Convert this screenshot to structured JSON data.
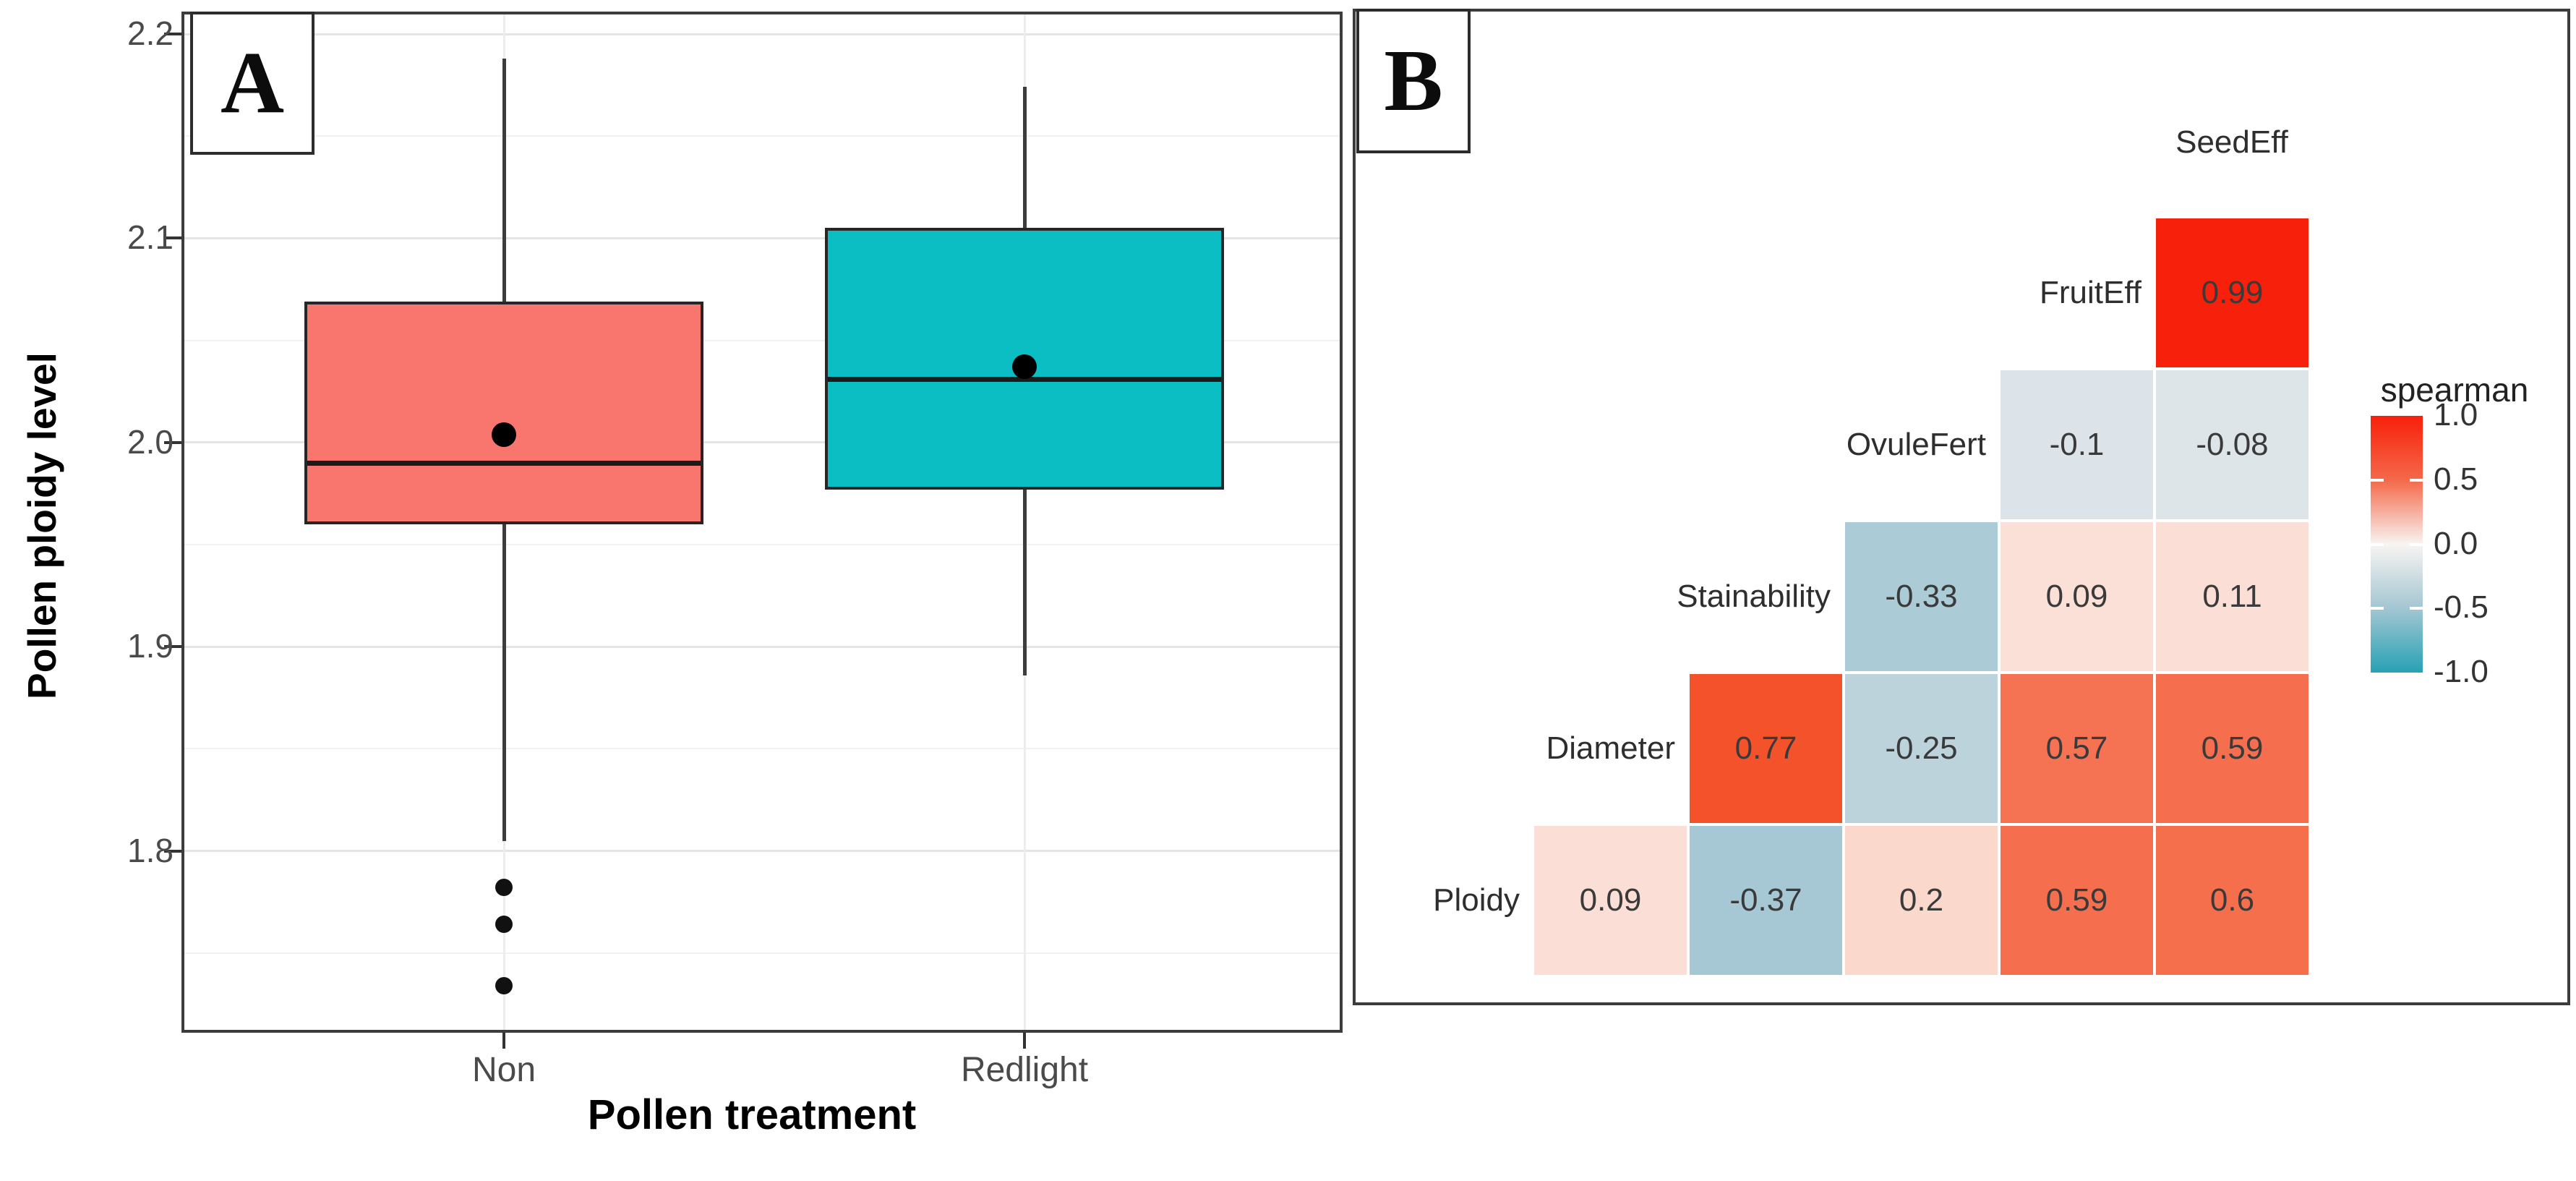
{
  "figure": {
    "panel_a_label": "A",
    "panel_b_label": "B"
  },
  "chart_data": [
    {
      "type": "boxplot",
      "panel_label": "A",
      "xlabel": "Pollen treatment",
      "ylabel": "Pollen ploidy level",
      "ylim": [
        1.711,
        2.211
      ],
      "grid": "major and minor horizontal, vertical at categories",
      "ytick_values": [
        2.2,
        2.1,
        2.0,
        1.9,
        1.8
      ],
      "ytick_labels": [
        "2.2",
        "2.1",
        "2.0",
        "1.9",
        "1.8"
      ],
      "yticks_minor": [
        2.15,
        2.05,
        1.95,
        1.85,
        1.75
      ],
      "categories": [
        "Non",
        "Redlight"
      ],
      "series": [
        {
          "name": "Non",
          "fill": "#F8766D",
          "whisker_low": 1.805,
          "q1": 1.96,
          "median": 1.99,
          "q3": 2.069,
          "whisker_high": 2.188,
          "mean": 2.004,
          "outliers": [
            1.782,
            1.764,
            1.734
          ]
        },
        {
          "name": "Redlight",
          "fill": "#0ABEC3",
          "whisker_low": 1.886,
          "q1": 1.977,
          "median": 2.031,
          "q3": 2.105,
          "whisker_high": 2.174,
          "mean": 2.037,
          "outliers": []
        }
      ]
    },
    {
      "type": "heatmap",
      "panel_label": "B",
      "column_top_label": "SeedEff",
      "diagonal_order": [
        "Ploidy",
        "Diameter",
        "Stainability",
        "OvuleFert",
        "FruitEff",
        "SeedEff"
      ],
      "legend": {
        "title": "spearman",
        "tick_labels": [
          "1.0",
          "0.5",
          "0.0",
          "-0.5",
          "-1.0"
        ],
        "gradient": [
          "#F7200A",
          "#F4694A",
          "#F8F4F2",
          "#A3C6D2",
          "#27A1B4"
        ]
      },
      "rows": [
        {
          "label": "FruitEff",
          "start_col": 4,
          "cells": [
            {
              "text": "0.99",
              "value": 0.99,
              "color": "#F7200A"
            }
          ]
        },
        {
          "label": "OvuleFert",
          "start_col": 3,
          "cells": [
            {
              "text": "-0.1",
              "value": -0.1,
              "color": "#DCE4E9"
            },
            {
              "text": "-0.08",
              "value": -0.08,
              "color": "#DDE5E9"
            }
          ]
        },
        {
          "label": "Stainability",
          "start_col": 2,
          "cells": [
            {
              "text": "-0.33",
              "value": -0.33,
              "color": "#ABCBD6"
            },
            {
              "text": "0.09",
              "value": 0.09,
              "color": "#FBE0D7"
            },
            {
              "text": "0.11",
              "value": 0.11,
              "color": "#FBDFD6"
            }
          ]
        },
        {
          "label": "Diameter",
          "start_col": 1,
          "cells": [
            {
              "text": "0.77",
              "value": 0.77,
              "color": "#F4522B"
            },
            {
              "text": "-0.25",
              "value": -0.25,
              "color": "#BCD3DC"
            },
            {
              "text": "0.57",
              "value": 0.57,
              "color": "#F57253"
            },
            {
              "text": "0.59",
              "value": 0.59,
              "color": "#F56F4E"
            }
          ]
        },
        {
          "label": "Ploidy",
          "start_col": 0,
          "cells": [
            {
              "text": "0.09",
              "value": 0.09,
              "color": "#FBDFD6"
            },
            {
              "text": "-0.37",
              "value": -0.37,
              "color": "#A6C8D4"
            },
            {
              "text": "0.2",
              "value": 0.2,
              "color": "#FAD8CC"
            },
            {
              "text": "0.59",
              "value": 0.59,
              "color": "#F56F4E"
            },
            {
              "text": "0.6",
              "value": 0.6,
              "color": "#F56F4C"
            }
          ]
        }
      ]
    }
  ]
}
